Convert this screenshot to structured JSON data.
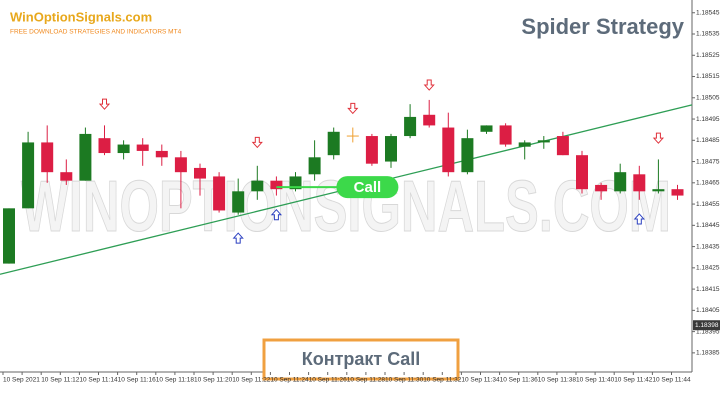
{
  "header": {
    "logo": "WinOptionSignals.com",
    "tagline": "FREE DOWNLOAD STRATEGIES AND INDICATORS MT4"
  },
  "chart_data": {
    "type": "candlestick",
    "title": "Spider Strategy",
    "watermark": "WINOPTIONSIGNALS.COM",
    "categories": [
      "10 Sep 2021",
      null,
      "10 Sep 11:12",
      null,
      "10 Sep 11:14",
      null,
      "10 Sep 11:16",
      null,
      "10 Sep 11:18",
      null,
      "10 Sep 11:20",
      null,
      "10 Sep 11:22",
      null,
      "10 Sep 11:24",
      null,
      "10 Sep 11:26",
      null,
      "10 Sep 11:28",
      null,
      "10 Sep 11:30",
      null,
      "10 Sep 11:32",
      null,
      "10 Sep 11:34",
      null,
      "10 Sep 11:36",
      null,
      "10 Sep 11:38",
      null,
      "10 Sep 11:40",
      null,
      "10 Sep 11:42",
      null,
      "10 Sep 11:44",
      null
    ],
    "open": [
      1.18427,
      1.18453,
      1.18484,
      1.1847,
      1.18466,
      1.18486,
      1.18479,
      1.18483,
      1.1848,
      1.18477,
      1.18472,
      1.18468,
      1.18451,
      1.18461,
      1.18466,
      1.18462,
      1.18469,
      1.18478,
      1.18487,
      1.18487,
      1.18475,
      1.18487,
      1.18497,
      1.18491,
      1.1847,
      1.18489,
      1.18492,
      1.18482,
      1.18484,
      1.18487,
      1.18478,
      1.18464,
      1.18461,
      1.18469,
      1.18461,
      1.18462
    ],
    "high": [
      1.18453,
      1.18489,
      1.18492,
      1.18476,
      1.18491,
      1.18492,
      1.18485,
      1.18486,
      1.18483,
      1.1848,
      1.18474,
      1.1847,
      1.18467,
      1.18473,
      1.18468,
      1.1847,
      1.18485,
      1.18491,
      1.18491,
      1.18488,
      1.18488,
      1.18502,
      1.18504,
      1.18498,
      1.1849,
      1.18492,
      1.18493,
      1.18485,
      1.18487,
      1.18489,
      1.1848,
      1.18465,
      1.18474,
      1.18473,
      1.18476,
      1.18464
    ],
    "low": [
      1.18427,
      1.18453,
      1.18465,
      1.18464,
      1.18466,
      1.18478,
      1.18476,
      1.18473,
      1.18473,
      1.18453,
      1.18459,
      1.18451,
      1.1845,
      1.18457,
      1.18459,
      1.18461,
      1.18466,
      1.18476,
      1.18484,
      1.18473,
      1.18472,
      1.18486,
      1.18491,
      1.18468,
      1.18469,
      1.18488,
      1.18482,
      1.18476,
      1.18481,
      1.18478,
      1.1846,
      1.18457,
      1.1846,
      1.18457,
      1.1846,
      1.18457
    ],
    "close": [
      1.18453,
      1.18484,
      1.1847,
      1.18466,
      1.18488,
      1.18479,
      1.18483,
      1.1848,
      1.18477,
      1.1847,
      1.18467,
      1.18452,
      1.18461,
      1.18466,
      1.18462,
      1.18468,
      1.18477,
      1.18489,
      1.18487,
      1.18474,
      1.18487,
      1.18496,
      1.18492,
      1.1847,
      1.18486,
      1.18492,
      1.18483,
      1.18484,
      1.18485,
      1.18478,
      1.18462,
      1.18461,
      1.1847,
      1.18461,
      1.18462,
      1.18459
    ],
    "up_color": "#1c7a22",
    "down_color": "#dc1e44",
    "doji_color": "#f0a030",
    "ylim": [
      1.18376,
      1.18551
    ],
    "yticks": [
      1.18385,
      1.18395,
      1.18405,
      1.18415,
      1.18425,
      1.18435,
      1.18445,
      1.18455,
      1.18465,
      1.18475,
      1.18485,
      1.18495,
      1.18505,
      1.18515,
      1.18525,
      1.18535,
      1.18545
    ],
    "current_price": 1.18398,
    "trendline": {
      "color": "#2e9e55",
      "x": [
        0,
        35
      ],
      "values": [
        1.18423,
        1.185
      ]
    },
    "sell_arrows": {
      "color": "#e0303a",
      "x": [
        5,
        13,
        18,
        22,
        34
      ],
      "values": [
        1.18502,
        1.18484,
        1.185,
        1.18511,
        1.18486
      ]
    },
    "buy_arrows": {
      "color": "#2a3fc0",
      "x": [
        12,
        14,
        33
      ],
      "values": [
        1.18439,
        1.1845,
        1.18448
      ]
    },
    "call_signal": {
      "label": "Call",
      "x": 14,
      "value": 1.18463,
      "color": "#3cd94a"
    }
  },
  "caption": "Контракт Call"
}
